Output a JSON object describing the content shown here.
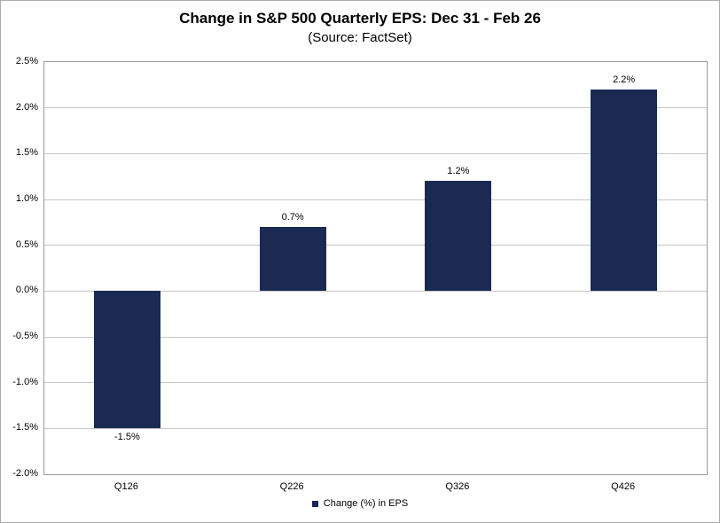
{
  "chart_data": {
    "type": "bar",
    "title": "Change in S&P 500 Quarterly EPS: Dec 31 - Feb 26",
    "subtitle": "(Source: FactSet)",
    "categories": [
      "Q126",
      "Q226",
      "Q326",
      "Q426"
    ],
    "values": [
      -1.5,
      0.7,
      1.2,
      2.2
    ],
    "bar_labels": [
      "-1.5%",
      "0.7%",
      "1.2%",
      "2.2%"
    ],
    "legend_label": "Change (%) in EPS",
    "legend_position": "bottom",
    "ylim": [
      -2.0,
      2.5
    ],
    "yticks": [
      2.5,
      2.0,
      1.5,
      1.0,
      0.5,
      0.0,
      -0.5,
      -1.0,
      -1.5,
      -2.0
    ],
    "ytick_labels": [
      "2.5%",
      "2.0%",
      "1.5%",
      "1.0%",
      "0.5%",
      "0.0%",
      "-0.5%",
      "-1.0%",
      "-1.5%",
      "-2.0%"
    ],
    "grid": true,
    "colors": {
      "bar": "#1b2a52",
      "gridline": "#c6c6c6",
      "plot_border": "#9a9a9a",
      "outer_border": "#ababab",
      "text": "#000000"
    }
  }
}
